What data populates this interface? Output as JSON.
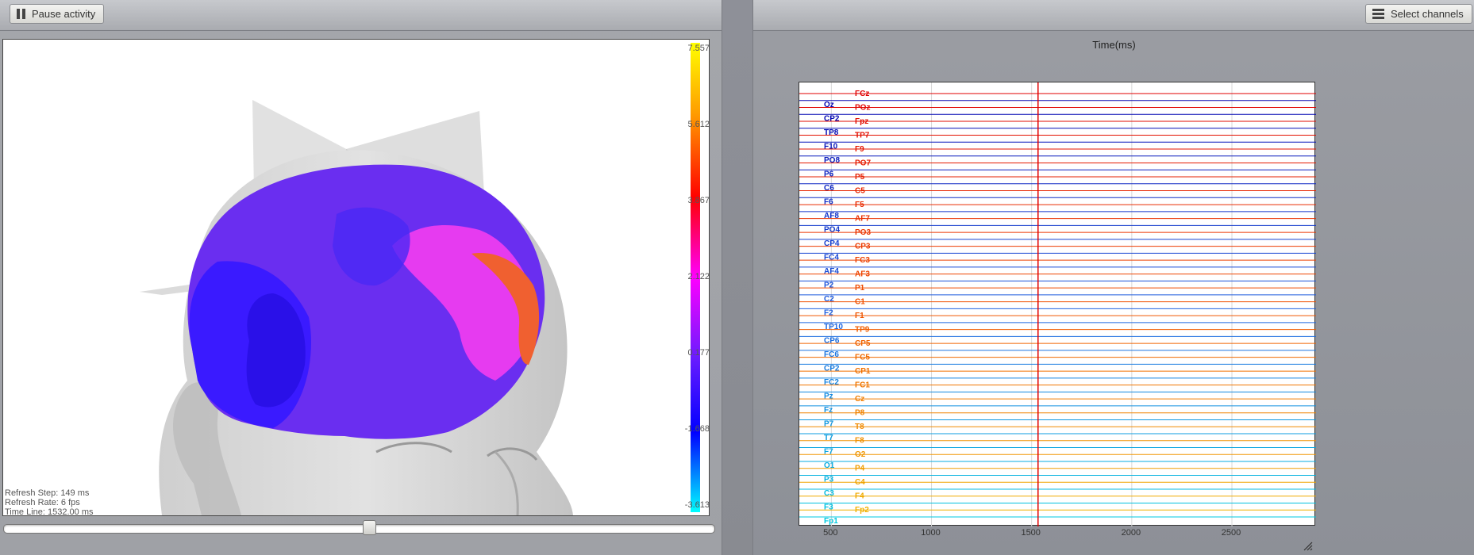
{
  "left_panel": {
    "pause_button_label": "Pause activity",
    "pause_icon": "pause-icon",
    "colorbar": {
      "ticks": [
        "7.557",
        "5.612",
        "3.867",
        "2.122",
        "0.177",
        "-1.668",
        "-3.613"
      ]
    },
    "info": {
      "refresh_step": "Refresh Step: 149 ms",
      "refresh_rate": "Refresh Rate: 6 fps",
      "time_line": "Time Line: 1532.00 ms"
    },
    "timeline_slider_position": 0.515
  },
  "right_panel": {
    "select_channels_label": "Select channels",
    "select_channels_icon": "list-icon",
    "title": "Time(ms)",
    "x_ticks": [
      "500",
      "1000",
      "1500",
      "2000",
      "2500"
    ],
    "cursor_time_ms": 1532,
    "channels_left": [
      "Oz",
      "CP2",
      "TP8",
      "F10",
      "PO8",
      "P6",
      "C6",
      "F6",
      "AF8",
      "PO4",
      "CP4",
      "FC4",
      "AF4",
      "P2",
      "C2",
      "F2",
      "TP10",
      "CP6",
      "FC6",
      "CP2",
      "FC2",
      "Pz",
      "Fz",
      "P7",
      "T7",
      "F7",
      "O1",
      "P3",
      "C3",
      "F3",
      "Fp1"
    ],
    "channels_right": [
      "FCz",
      "POz",
      "Fpz",
      "TP7",
      "F9",
      "PO7",
      "P5",
      "C5",
      "F5",
      "AF7",
      "PO3",
      "CP3",
      "FC3",
      "AF3",
      "P1",
      "C1",
      "F1",
      "TP9",
      "CP5",
      "FC5",
      "CP1",
      "FC1",
      "Cz",
      "P8",
      "T8",
      "F8",
      "O2",
      "P4",
      "C4",
      "F4",
      "Fp2"
    ]
  },
  "chart_data": {
    "type": "line",
    "title": "Time(ms)",
    "xlabel": "",
    "ylabel": "",
    "x_ticks": [
      500,
      1000,
      1500,
      2000,
      2500
    ],
    "xlim": [
      340,
      2920
    ],
    "cursor_x": 1532,
    "series_count": 62
  }
}
